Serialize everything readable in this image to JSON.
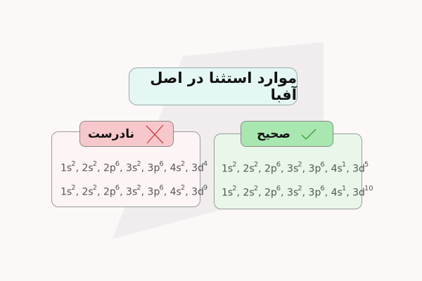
{
  "title": "موارد استثنا در اصل آفبا",
  "incorrect": {
    "label": "نادرست",
    "icon": "cross-icon",
    "color": "#d43a3a",
    "configs": [
      [
        {
          "b": "1s",
          "s": "2"
        },
        {
          "b": "2s",
          "s": "2"
        },
        {
          "b": "2p",
          "s": "6"
        },
        {
          "b": "3s",
          "s": "2"
        },
        {
          "b": "3p",
          "s": "6"
        },
        {
          "b": "4s",
          "s": "2"
        },
        {
          "b": "3d",
          "s": "4"
        }
      ],
      [
        {
          "b": "1s",
          "s": "2"
        },
        {
          "b": "2s",
          "s": "2"
        },
        {
          "b": "2p",
          "s": "6"
        },
        {
          "b": "3s",
          "s": "2"
        },
        {
          "b": "3p",
          "s": "6"
        },
        {
          "b": "4s",
          "s": "2"
        },
        {
          "b": "3d",
          "s": "9"
        }
      ]
    ]
  },
  "correct": {
    "label": "صحیح",
    "icon": "check-icon",
    "color": "#3a9a3a",
    "configs": [
      [
        {
          "b": "1s",
          "s": "2"
        },
        {
          "b": "2s",
          "s": "2"
        },
        {
          "b": "2p",
          "s": "6"
        },
        {
          "b": "3s",
          "s": "2"
        },
        {
          "b": "3p",
          "s": "6"
        },
        {
          "b": "4s",
          "s": "1"
        },
        {
          "b": "3d",
          "s": "5"
        }
      ],
      [
        {
          "b": "1s",
          "s": "2"
        },
        {
          "b": "2s",
          "s": "2"
        },
        {
          "b": "2p",
          "s": "6"
        },
        {
          "b": "3s",
          "s": "2"
        },
        {
          "b": "3p",
          "s": "6"
        },
        {
          "b": "4s",
          "s": "1"
        },
        {
          "b": "3d",
          "s": "10"
        }
      ]
    ]
  }
}
